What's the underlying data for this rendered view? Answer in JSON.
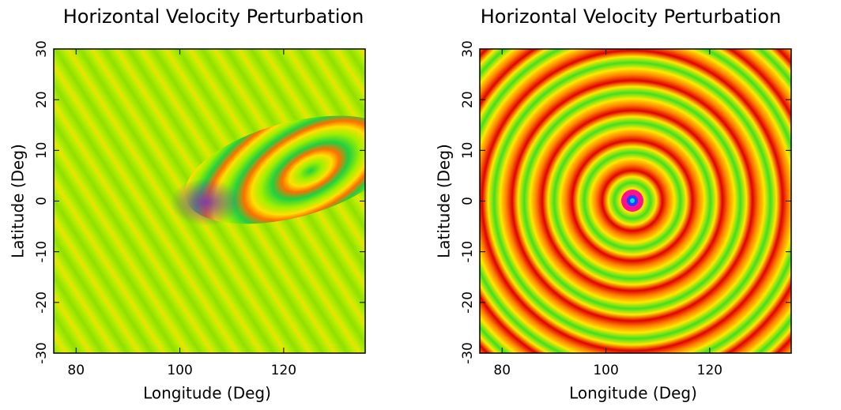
{
  "chart_data": [
    {
      "type": "heatmap",
      "title": "Horizontal Velocity Perturbation",
      "x_label": "Longitude (Deg)",
      "y_label": "Latitude (Deg)",
      "xlim": [
        75.7,
        135.7
      ],
      "ylim": [
        -30,
        30
      ],
      "xticks": [
        80,
        100,
        120
      ],
      "yticks": [
        -30,
        -20,
        -10,
        0,
        10,
        20,
        30
      ]
    },
    {
      "type": "heatmap",
      "title": "Horizontal Velocity Perturbation",
      "x_label": "Longitude (Deg)",
      "y_label": "Latitude (Deg)",
      "xlim": [
        75.7,
        135.7
      ],
      "ylim": [
        -30,
        30
      ],
      "xticks": [
        80,
        100,
        120
      ],
      "yticks": [
        -30,
        -20,
        -10,
        0,
        10,
        20,
        30
      ]
    }
  ]
}
